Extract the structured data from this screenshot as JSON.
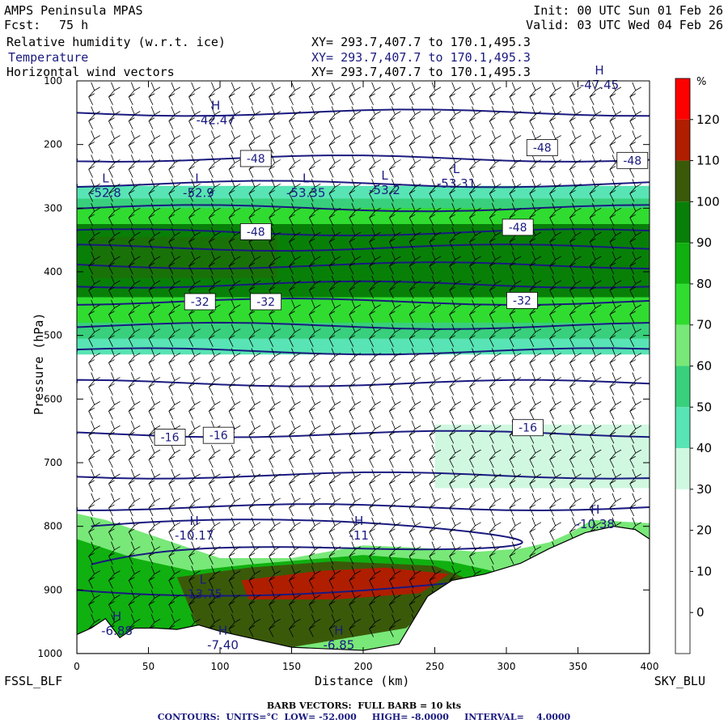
{
  "header": {
    "model": "AMPS Peninsula MPAS",
    "fcst_label": "Fcst:",
    "fcst_value": "75 h",
    "init": "Init: 00 UTC Sun 01 Feb 26",
    "valid": "Valid: 03 UTC Wed 04 Feb 26",
    "fields": [
      {
        "name": "Relative humidity (w.r.t. ice)",
        "xy": "XY= 293.7,407.7 to 170.1,495.3",
        "color": "#000000"
      },
      {
        "name": "Temperature",
        "xy": "XY= 293.7,407.7 to 170.1,495.3",
        "color": "#1a1a80"
      },
      {
        "name": "Horizontal wind vectors",
        "xy": "XY= 293.7,407.7 to 170.1,495.3",
        "color": "#000000"
      }
    ]
  },
  "footer": {
    "left_station": "FSSL_BLF",
    "right_station": "SKY_BLU",
    "barb_note": "BARB VECTORS:  FULL BARB = 10 kts",
    "contour_note": "CONTOURS:  UNITS=°C  LOW= -52.000     HIGH= -8.0000     INTERVAL=    4.0000"
  },
  "colors": {
    "contour": "#1a1a80",
    "rh_30": "#d0f8e0",
    "rh_40": "#58e4b4",
    "rh_50": "#38d07c",
    "rh_60": "#78e878",
    "rh_70": "#30dc30",
    "rh_80": "#10b010",
    "rh_90": "#088008",
    "rh_100": "#3a5a0a",
    "rh_110": "#b01e00",
    "rh_120": "#ff0000",
    "terrain": "#ffffff"
  },
  "chart_data": {
    "type": "heatmap",
    "xlabel": "Distance (km)",
    "ylabel": "Pressure (hPa)",
    "xlim": [
      0,
      400
    ],
    "ylim": [
      1000,
      100
    ],
    "x_ticks": [
      "0",
      "50",
      "100",
      "150",
      "200",
      "250",
      "300",
      "350",
      "400"
    ],
    "y_ticks": [
      "100",
      "200",
      "300",
      "400",
      "500",
      "600",
      "700",
      "800",
      "900",
      "1000"
    ],
    "colorbar": {
      "unit": "%",
      "labels": [
        "120",
        "110",
        "100",
        "90",
        "80",
        "70",
        "60",
        "50",
        "40",
        "30",
        "20",
        "10",
        "0"
      ]
    },
    "rh_bands": [
      {
        "p_top": 265,
        "p_bot": 530,
        "rh": 40
      },
      {
        "p_top": 285,
        "p_bot": 505,
        "rh": 50
      },
      {
        "p_top": 300,
        "p_bot": 480,
        "rh": 70
      },
      {
        "p_top": 325,
        "p_bot": 440,
        "rh": 90
      },
      {
        "p_top": 640,
        "p_bot": 740,
        "rh": 30,
        "x_start": 250
      }
    ],
    "temperature_contours_c": [
      -48,
      -44,
      -40,
      -36,
      -32,
      -28,
      -24,
      -20,
      -16,
      -12,
      -8
    ],
    "contour_labels": [
      {
        "text": "-48",
        "x": 125,
        "p": 222
      },
      {
        "text": "-48",
        "x": 325,
        "p": 205
      },
      {
        "text": "-48",
        "x": 388,
        "p": 225
      },
      {
        "text": "-48",
        "x": 125,
        "p": 337
      },
      {
        "text": "-48",
        "x": 308,
        "p": 330
      },
      {
        "text": "-32",
        "x": 86,
        "p": 447
      },
      {
        "text": "-32",
        "x": 132,
        "p": 447
      },
      {
        "text": "-32",
        "x": 311,
        "p": 445
      },
      {
        "text": "-16",
        "x": 65,
        "p": 660
      },
      {
        "text": "-16",
        "x": 99,
        "p": 657
      },
      {
        "text": "-16",
        "x": 315,
        "p": 645
      }
    ],
    "extrema": [
      {
        "type": "H",
        "value": "-42.47",
        "x": 97,
        "p": 155
      },
      {
        "type": "L",
        "value": "-52.8",
        "x": 20,
        "p": 270
      },
      {
        "type": "L",
        "value": "-52.9",
        "x": 85,
        "p": 270
      },
      {
        "type": "L",
        "value": "-53.35",
        "x": 160,
        "p": 270
      },
      {
        "type": "L",
        "value": "-53.2",
        "x": 215,
        "p": 265
      },
      {
        "type": "L",
        "value": "-53.31",
        "x": 265,
        "p": 255
      },
      {
        "type": "H",
        "value": "-47.45",
        "x": 365,
        "p": 100
      },
      {
        "type": "H",
        "value": "-10.17",
        "x": 82,
        "p": 808
      },
      {
        "type": "H",
        "value": "-11",
        "x": 197,
        "p": 808
      },
      {
        "type": "H",
        "value": "-10.38",
        "x": 362,
        "p": 790
      },
      {
        "type": "L",
        "value": "-13.75",
        "x": 88,
        "p": 900
      },
      {
        "type": "H",
        "value": "-6.88",
        "x": 28,
        "p": 958
      },
      {
        "type": "H",
        "value": "-7.40",
        "x": 102,
        "p": 980
      },
      {
        "type": "H",
        "value": "-6.85",
        "x": 183,
        "p": 980
      }
    ],
    "surface_pressure_profile": [
      {
        "x": 0,
        "p": 970
      },
      {
        "x": 10,
        "p": 960
      },
      {
        "x": 20,
        "p": 945
      },
      {
        "x": 30,
        "p": 975
      },
      {
        "x": 40,
        "p": 960
      },
      {
        "x": 55,
        "p": 960
      },
      {
        "x": 70,
        "p": 962
      },
      {
        "x": 85,
        "p": 955
      },
      {
        "x": 100,
        "p": 965
      },
      {
        "x": 150,
        "p": 990
      },
      {
        "x": 200,
        "p": 995
      },
      {
        "x": 225,
        "p": 985
      },
      {
        "x": 245,
        "p": 910
      },
      {
        "x": 262,
        "p": 885
      },
      {
        "x": 285,
        "p": 875
      },
      {
        "x": 310,
        "p": 858
      },
      {
        "x": 330,
        "p": 835
      },
      {
        "x": 355,
        "p": 810
      },
      {
        "x": 375,
        "p": 800
      },
      {
        "x": 390,
        "p": 805
      },
      {
        "x": 400,
        "p": 820
      }
    ]
  }
}
